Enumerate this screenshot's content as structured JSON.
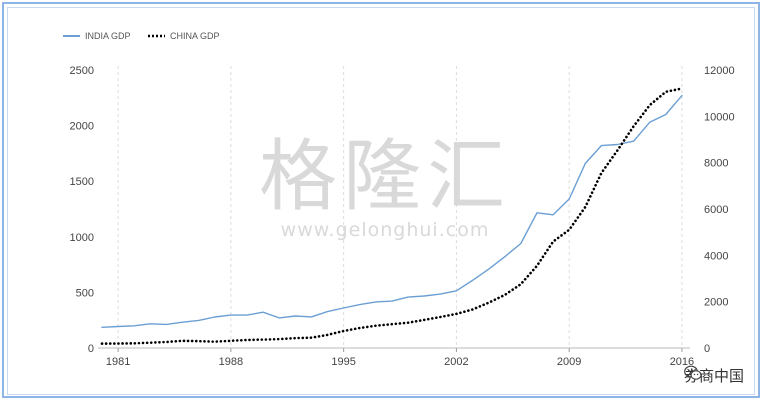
{
  "chart_data": {
    "type": "line",
    "title": "",
    "xlabel": "",
    "ylabel": "",
    "x_ticks": [
      "1981",
      "1988",
      "1995",
      "2002",
      "2009",
      "2016"
    ],
    "y_left_ticks": [
      "0",
      "500",
      "1000",
      "1500",
      "2000",
      "2500"
    ],
    "y_right_ticks": [
      "0",
      "2000",
      "4000",
      "6000",
      "8000",
      "10000",
      "12000"
    ],
    "ylim_left": [
      0,
      2500
    ],
    "ylim_right": [
      0,
      12000
    ],
    "xlim": [
      1980,
      2016.5
    ],
    "grid": "x-dashed",
    "legend_position": "top-left",
    "series": [
      {
        "name": "INDIA GDP",
        "axis": "left",
        "color": "#6b9fd4",
        "style": "solid",
        "points": [
          [
            1980,
            186
          ],
          [
            1981,
            193
          ],
          [
            1982,
            200
          ],
          [
            1983,
            218
          ],
          [
            1984,
            212
          ],
          [
            1985,
            232
          ],
          [
            1986,
            248
          ],
          [
            1987,
            279
          ],
          [
            1988,
            296
          ],
          [
            1989,
            296
          ],
          [
            1990,
            322
          ],
          [
            1991,
            271
          ],
          [
            1992,
            288
          ],
          [
            1993,
            280
          ],
          [
            1994,
            327
          ],
          [
            1995,
            360
          ],
          [
            1996,
            390
          ],
          [
            1997,
            415
          ],
          [
            1998,
            422
          ],
          [
            1999,
            458
          ],
          [
            2000,
            468
          ],
          [
            2001,
            485
          ],
          [
            2002,
            514
          ],
          [
            2003,
            608
          ],
          [
            2004,
            709
          ],
          [
            2005,
            820
          ],
          [
            2006,
            940
          ],
          [
            2007,
            1216
          ],
          [
            2008,
            1198
          ],
          [
            2009,
            1340
          ],
          [
            2010,
            1660
          ],
          [
            2011,
            1820
          ],
          [
            2012,
            1830
          ],
          [
            2013,
            1860
          ],
          [
            2014,
            2030
          ],
          [
            2015,
            2100
          ],
          [
            2016,
            2270
          ]
        ]
      },
      {
        "name": "CHINA GDP",
        "axis": "right",
        "color": "#000000",
        "style": "dotted",
        "points": [
          [
            1980,
            190
          ],
          [
            1981,
            196
          ],
          [
            1982,
            203
          ],
          [
            1983,
            228
          ],
          [
            1984,
            257
          ],
          [
            1985,
            309
          ],
          [
            1986,
            300
          ],
          [
            1987,
            272
          ],
          [
            1988,
            312
          ],
          [
            1989,
            347
          ],
          [
            1990,
            361
          ],
          [
            1991,
            383
          ],
          [
            1992,
            427
          ],
          [
            1993,
            445
          ],
          [
            1994,
            564
          ],
          [
            1995,
            734
          ],
          [
            1996,
            863
          ],
          [
            1997,
            961
          ],
          [
            1998,
            1029
          ],
          [
            1999,
            1094
          ],
          [
            2000,
            1211
          ],
          [
            2001,
            1339
          ],
          [
            2002,
            1471
          ],
          [
            2003,
            1660
          ],
          [
            2004,
            1955
          ],
          [
            2005,
            2286
          ],
          [
            2006,
            2752
          ],
          [
            2007,
            3550
          ],
          [
            2008,
            4594
          ],
          [
            2009,
            5102
          ],
          [
            2010,
            6087
          ],
          [
            2011,
            7552
          ],
          [
            2012,
            8532
          ],
          [
            2013,
            9570
          ],
          [
            2014,
            10480
          ],
          [
            2015,
            11060
          ],
          [
            2016,
            11200
          ]
        ]
      }
    ]
  },
  "watermark": {
    "main": "格隆汇",
    "sub": "www.gelonghui.com"
  },
  "brand": {
    "label": "券商中国",
    "icon": "wechat-icon"
  }
}
